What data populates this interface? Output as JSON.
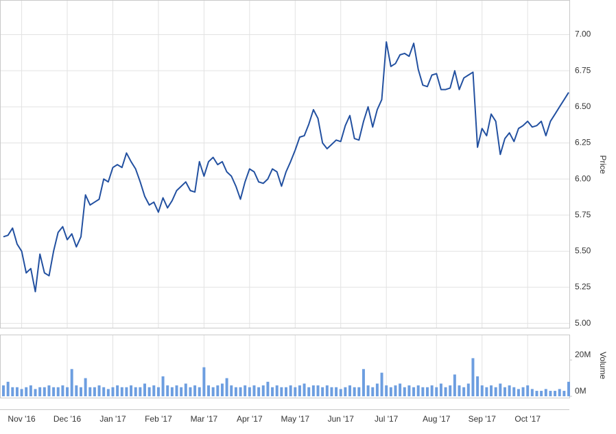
{
  "chart_data": [
    {
      "type": "line",
      "y_label": "Price",
      "color": "#2250a0",
      "grid": true,
      "ylim": [
        4.97,
        7.24
      ],
      "yticks": [
        {
          "value": 5,
          "label": "5.00"
        },
        {
          "value": 5.25,
          "label": "5.25"
        },
        {
          "value": 5.5,
          "label": "5.50"
        },
        {
          "value": 5.75,
          "label": "5.75"
        },
        {
          "value": 6,
          "label": "6.00"
        },
        {
          "value": 6.25,
          "label": "6.25"
        },
        {
          "value": 6.5,
          "label": "6.50"
        },
        {
          "value": 6.75,
          "label": "6.75"
        },
        {
          "value": 7,
          "label": "7.00"
        }
      ],
      "categories": [
        null,
        null,
        null,
        null,
        "Nov '16",
        null,
        null,
        null,
        null,
        null,
        null,
        null,
        null,
        null,
        "Dec '16",
        null,
        null,
        null,
        null,
        null,
        null,
        null,
        null,
        null,
        "Jan '17",
        null,
        null,
        null,
        null,
        null,
        null,
        null,
        null,
        null,
        "Feb '17",
        null,
        null,
        null,
        null,
        null,
        null,
        null,
        null,
        null,
        "Mar '17",
        null,
        null,
        null,
        null,
        null,
        null,
        null,
        null,
        null,
        "Apr '17",
        null,
        null,
        null,
        null,
        null,
        null,
        null,
        null,
        null,
        "May '17",
        null,
        null,
        null,
        null,
        null,
        null,
        null,
        null,
        null,
        "Jun '17",
        null,
        null,
        null,
        null,
        null,
        null,
        null,
        null,
        null,
        "Jul '17",
        null,
        null,
        null,
        null,
        null,
        null,
        null,
        null,
        null,
        null,
        "Aug '17",
        null,
        null,
        null,
        null,
        null,
        null,
        null,
        null,
        null,
        "Sep '17",
        null,
        null,
        null,
        null,
        null,
        null,
        null,
        null,
        null,
        "Oct '17",
        null,
        null,
        null,
        null,
        null,
        null,
        null,
        null,
        null
      ],
      "values": [
        5.6,
        5.61,
        5.66,
        5.55,
        5.5,
        5.35,
        5.38,
        5.22,
        5.48,
        5.35,
        5.33,
        5.5,
        5.63,
        5.67,
        5.58,
        5.62,
        5.53,
        5.6,
        5.89,
        5.82,
        5.84,
        5.86,
        6.0,
        5.98,
        6.08,
        6.1,
        6.08,
        6.18,
        6.12,
        6.07,
        5.98,
        5.88,
        5.82,
        5.84,
        5.77,
        5.87,
        5.8,
        5.85,
        5.92,
        5.95,
        5.98,
        5.92,
        5.91,
        6.12,
        6.02,
        6.12,
        6.15,
        6.1,
        6.12,
        6.05,
        6.02,
        5.95,
        5.86,
        5.98,
        6.07,
        6.05,
        5.98,
        5.97,
        6.0,
        6.07,
        6.05,
        5.95,
        6.05,
        6.12,
        6.2,
        6.29,
        6.3,
        6.38,
        6.48,
        6.42,
        6.25,
        6.21,
        6.24,
        6.27,
        6.26,
        6.37,
        6.44,
        6.28,
        6.27,
        6.4,
        6.5,
        6.36,
        6.48,
        6.55,
        6.95,
        6.78,
        6.8,
        6.86,
        6.87,
        6.85,
        6.94,
        6.76,
        6.65,
        6.64,
        6.72,
        6.73,
        6.62,
        6.62,
        6.63,
        6.75,
        6.62,
        6.7,
        6.72,
        6.74,
        6.22,
        6.35,
        6.3,
        6.45,
        6.4,
        6.17,
        6.28,
        6.32,
        6.26,
        6.35,
        6.37,
        6.4,
        6.36,
        6.37,
        6.4,
        6.3,
        6.4,
        6.45,
        6.5,
        6.55,
        6.6
      ]
    },
    {
      "type": "bar",
      "y_label": "Volume",
      "color": "#6d9ee0",
      "ylim": [
        0,
        34
      ],
      "yticks": [
        {
          "value": 0,
          "label": "0M"
        },
        {
          "value": 20,
          "label": "20M"
        }
      ],
      "values": [
        6,
        8,
        5,
        5,
        4,
        5,
        6,
        4,
        5,
        5,
        6,
        5,
        5,
        6,
        5,
        15,
        6,
        5,
        10,
        5,
        5,
        6,
        5,
        4,
        5,
        6,
        5,
        5,
        6,
        5,
        5,
        7,
        5,
        6,
        5,
        11,
        6,
        5,
        6,
        5,
        7,
        5,
        6,
        5,
        16,
        6,
        5,
        6,
        7,
        10,
        6,
        5,
        5,
        6,
        5,
        6,
        5,
        6,
        8,
        5,
        6,
        5,
        5,
        6,
        5,
        6,
        7,
        5,
        6,
        6,
        5,
        6,
        5,
        5,
        4,
        5,
        6,
        5,
        5,
        15,
        6,
        5,
        7,
        13,
        6,
        5,
        6,
        7,
        5,
        6,
        5,
        6,
        5,
        5,
        6,
        5,
        7,
        5,
        6,
        12,
        6,
        5,
        7,
        21,
        11,
        6,
        5,
        6,
        5,
        7,
        5,
        6,
        5,
        4,
        5,
        6,
        4,
        3,
        3,
        4,
        3,
        3,
        4,
        3,
        8
      ]
    }
  ]
}
